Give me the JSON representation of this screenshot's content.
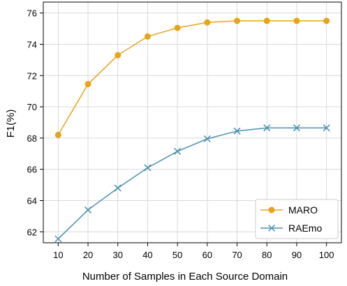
{
  "chart_data": {
    "type": "line",
    "title": "",
    "xlabel": "Number of Samples in Each Source Domain",
    "ylabel": "F1(%)",
    "x": [
      10,
      20,
      30,
      40,
      50,
      60,
      70,
      80,
      90,
      100
    ],
    "xticks": [
      "10",
      "20",
      "30",
      "40",
      "50",
      "60",
      "70",
      "80",
      "90",
      "100"
    ],
    "yticks": [
      "62",
      "64",
      "66",
      "68",
      "70",
      "72",
      "74",
      "76"
    ],
    "xlim": [
      5,
      105
    ],
    "ylim": [
      61.3,
      76.7
    ],
    "grid": true,
    "legend_position": "bottom-right",
    "series": [
      {
        "name": "MARO",
        "color": "#E8A317",
        "marker": "circle",
        "values": [
          68.2,
          71.45,
          73.3,
          74.5,
          75.05,
          75.4,
          75.5,
          75.5,
          75.5,
          75.5
        ]
      },
      {
        "name": "RAEmo",
        "color": "#4A90B0",
        "marker": "x",
        "values": [
          61.55,
          63.4,
          64.8,
          66.1,
          67.15,
          67.95,
          68.45,
          68.65,
          68.65,
          68.65
        ]
      }
    ]
  }
}
